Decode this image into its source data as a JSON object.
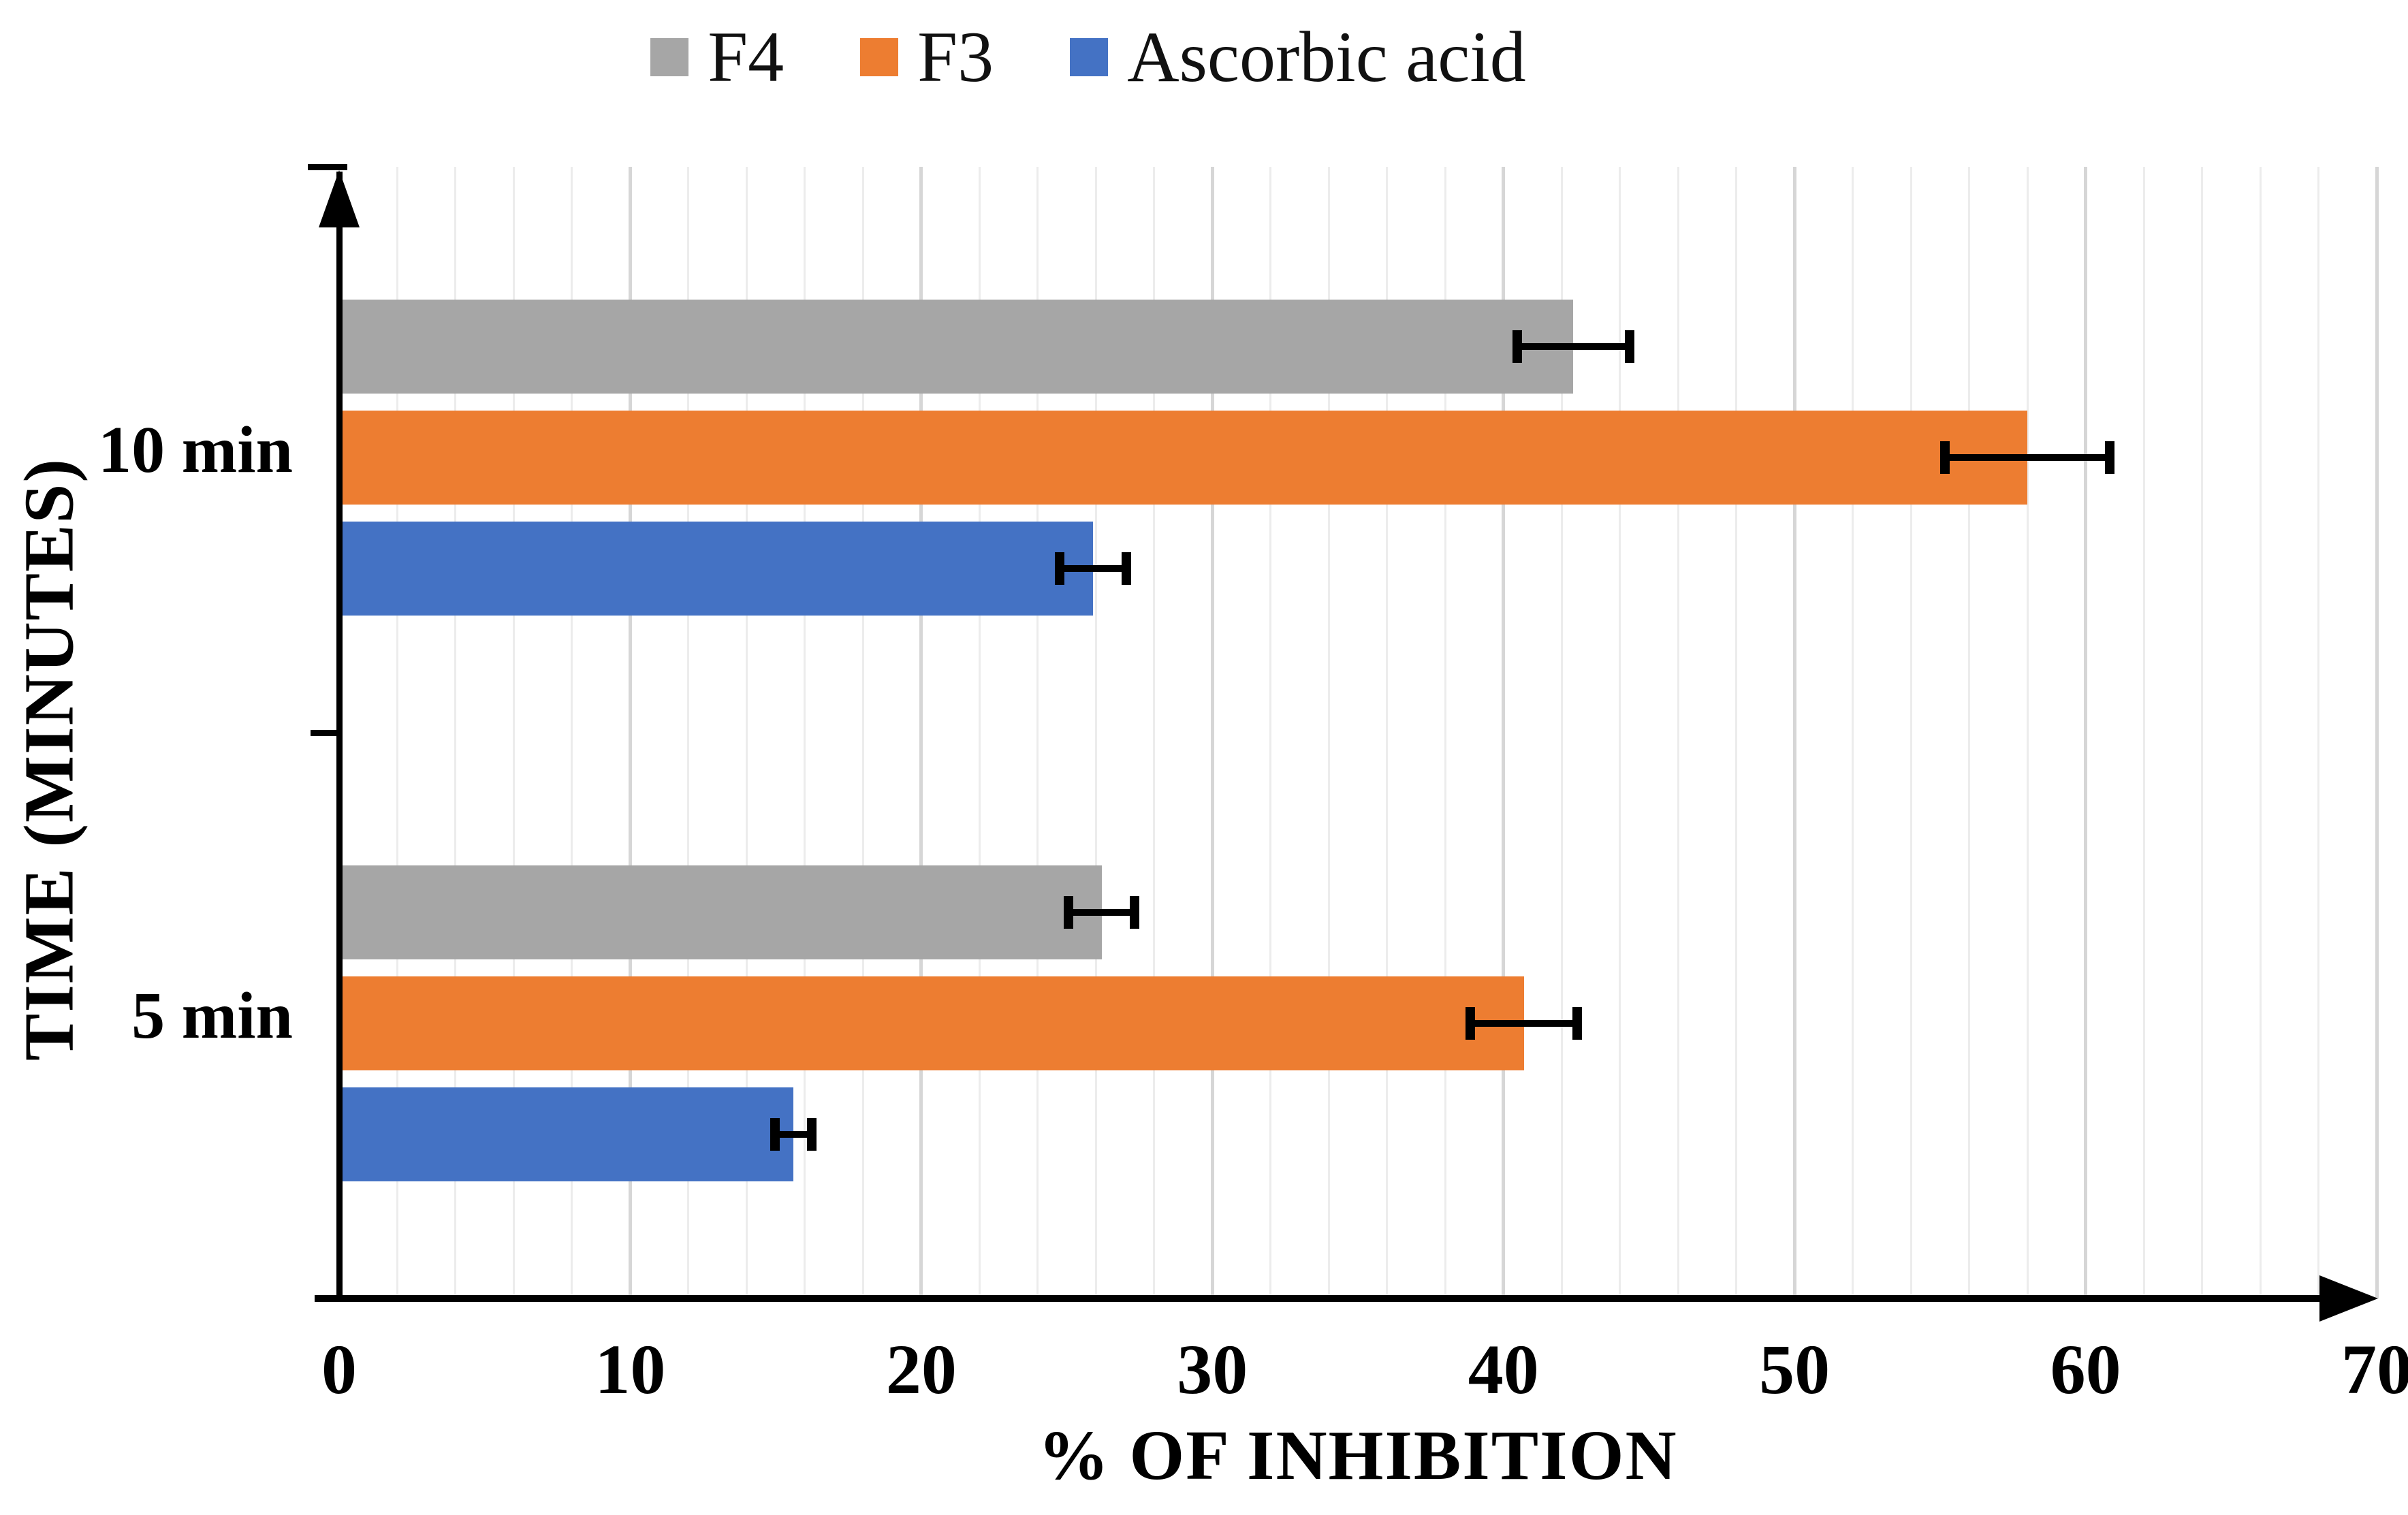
{
  "chart_data": {
    "type": "bar",
    "orientation": "horizontal",
    "title": "",
    "categories": [
      "10 min",
      "5 min"
    ],
    "series": [
      {
        "name": "F4",
        "color": "#A6A6A6",
        "values": [
          42.4,
          26.2
        ],
        "errors": [
          2.1,
          1.3
        ]
      },
      {
        "name": "F3",
        "color": "#ED7D31",
        "values": [
          58.0,
          40.7
        ],
        "errors": [
          3.0,
          2.0
        ]
      },
      {
        "name": "Ascorbic acid",
        "color": "#4472C4",
        "values": [
          25.9,
          15.6
        ],
        "errors": [
          1.3,
          0.8
        ]
      }
    ],
    "xlabel": "% OF INHIBITION",
    "ylabel": "TIME (MINUTES)",
    "xlim": [
      0,
      70
    ],
    "x_ticks": [
      0,
      10,
      20,
      30,
      40,
      50,
      60,
      70
    ],
    "minor_grid_step": 2,
    "major_grid_step": 10,
    "grid": true,
    "legend_position": "top",
    "error_bar_color": "#000000"
  },
  "colors": {
    "background": "#FFFFFF",
    "axis": "#000000",
    "minor_grid": "#ECECEC",
    "major_grid": "#D6D6D6"
  }
}
